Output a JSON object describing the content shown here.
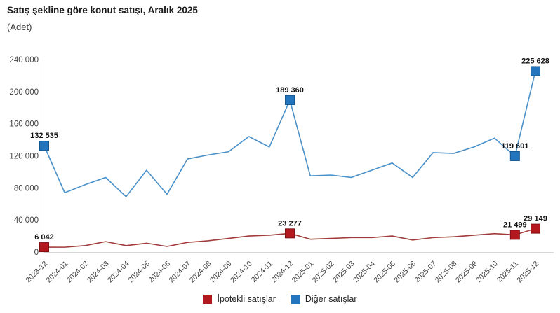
{
  "header": {
    "title": "Satış şekline göre konut satışı, Aralık 2025",
    "subtitle": "(Adet)"
  },
  "chart_data": {
    "type": "line",
    "title": "Satış şekline göre konut satışı, Aralık 2025",
    "unit_label": "(Adet)",
    "categories": [
      "2023-12",
      "2024-01",
      "2024-02",
      "2024-03",
      "2024-04",
      "2024-05",
      "2024-06",
      "2024-07",
      "2024-08",
      "2024-09",
      "2024-10",
      "2024-11",
      "2024-12",
      "2025-01",
      "2025-02",
      "2025-03",
      "2025-04",
      "2025-05",
      "2025-06",
      "2025-07",
      "2025-08",
      "2025-09",
      "2025-10",
      "2025-11",
      "2025-12"
    ],
    "series": [
      {
        "name": "İpotekli satışlar",
        "line_color": "#a23b3b",
        "marker_color": "#b2181d",
        "marker_border": "#7e0f13",
        "values": [
          6042,
          6000,
          8000,
          13000,
          8000,
          11000,
          7000,
          12000,
          14000,
          17000,
          20000,
          21000,
          23277,
          16000,
          17000,
          18000,
          18000,
          20000,
          15000,
          18000,
          19000,
          21000,
          23000,
          21499,
          29149
        ],
        "markers": [
          {
            "index": 0,
            "label": "6 042"
          },
          {
            "index": 12,
            "label": "23 277"
          },
          {
            "index": 23,
            "label": "21 499"
          },
          {
            "index": 24,
            "label": "29 149"
          }
        ]
      },
      {
        "name": "Diğer satışlar",
        "line_color": "#4a90c9",
        "marker_color": "#2376bd",
        "marker_border": "#15578f",
        "values": [
          132535,
          74000,
          84000,
          93000,
          69000,
          102000,
          72000,
          116000,
          121000,
          125000,
          144000,
          131000,
          189360,
          95000,
          96000,
          93000,
          102000,
          111000,
          93000,
          124000,
          123000,
          131000,
          142000,
          119601,
          225628
        ],
        "markers": [
          {
            "index": 0,
            "label": "132 535"
          },
          {
            "index": 12,
            "label": "189 360"
          },
          {
            "index": 23,
            "label": "119 601"
          },
          {
            "index": 24,
            "label": "225 628"
          }
        ]
      }
    ],
    "ylim": [
      0,
      240000
    ],
    "yticks": [
      {
        "value": 0,
        "label": "0"
      },
      {
        "value": 40000,
        "label": "40 000"
      },
      {
        "value": 80000,
        "label": "80 000"
      },
      {
        "value": 120000,
        "label": "120 000"
      },
      {
        "value": 160000,
        "label": "160 000"
      },
      {
        "value": 200000,
        "label": "200 000"
      },
      {
        "value": 240000,
        "label": "240 000"
      }
    ],
    "grid": "none",
    "legend_position": "bottom"
  },
  "legend": {
    "items": [
      {
        "label": "İpotekli satışlar",
        "color": "#b2181d"
      },
      {
        "label": "Diğer satışlar",
        "color": "#2376bd"
      }
    ]
  },
  "colors": {
    "axis_line": "#d6d6d6",
    "axis_text": "#404040",
    "data_label": "#111111",
    "background": "#ffffff"
  }
}
